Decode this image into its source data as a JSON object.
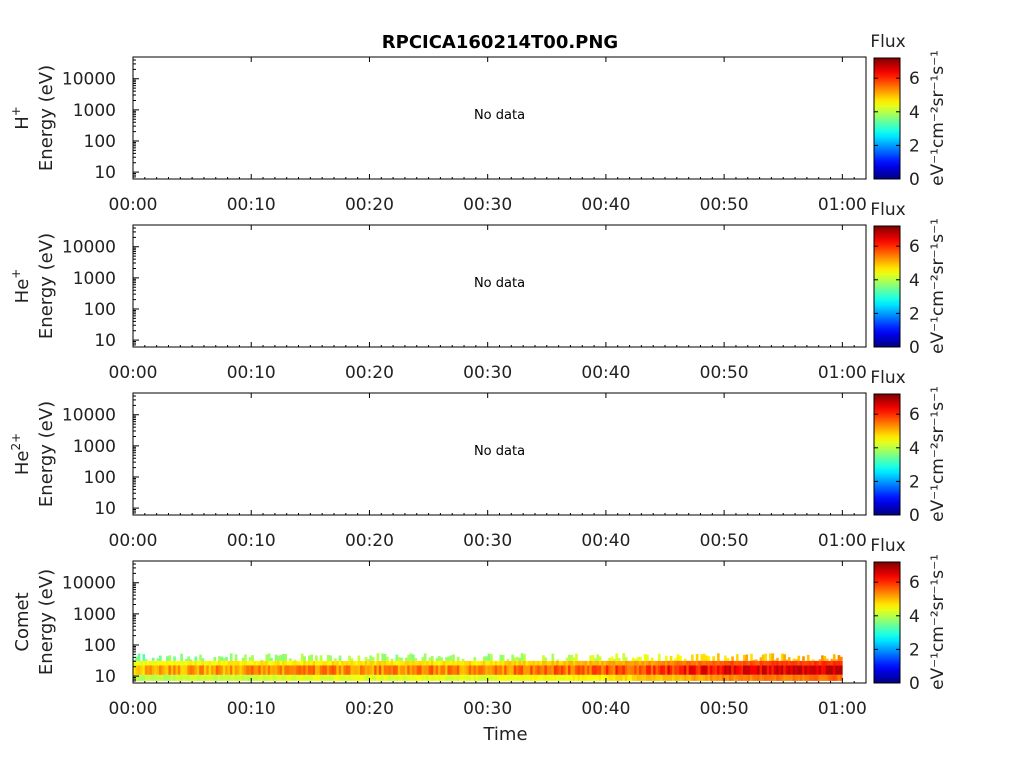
{
  "chart_data": {
    "type": "heatmap",
    "title": "RPCICA160214T00.PNG",
    "xlabel": "Time",
    "x_ticks": [
      "00:00",
      "00:10",
      "00:20",
      "00:30",
      "00:40",
      "00:50",
      "01:00"
    ],
    "x_range_minutes": [
      0,
      62
    ],
    "y_scale": "log",
    "y_range_eV": [
      6,
      50000
    ],
    "y_ticks": [
      10,
      100,
      1000,
      10000
    ],
    "y_tick_labels": [
      "10",
      "100",
      "1000",
      "10000"
    ],
    "colorbar": {
      "label": "Flux",
      "units": "eV⁻¹cm⁻²sr⁻¹s⁻¹",
      "range": [
        0,
        7.2
      ],
      "ticks": [
        0,
        2,
        4,
        6
      ],
      "tick_labels": [
        "0",
        "2",
        "4",
        "6"
      ],
      "colormap": "jet"
    },
    "panels": [
      {
        "species": "H",
        "charge": "+",
        "ylabel": "Energy (eV)",
        "status": "No data"
      },
      {
        "species": "He",
        "charge": "+",
        "ylabel": "Energy (eV)",
        "status": "No data"
      },
      {
        "species": "He",
        "charge": "2+",
        "ylabel": "Energy (eV)",
        "status": "No data"
      },
      {
        "species": "Comet",
        "charge": "",
        "ylabel": "Energy (eV)",
        "status": "",
        "band": {
          "energy_peak_eV": 16,
          "energy_core_eV": [
            11,
            22
          ],
          "energy_halo_eV": [
            7,
            55
          ],
          "time_minutes": [
            0,
            60
          ],
          "peak_flux": 6.8,
          "intensity_profile": [
            {
              "t": 0,
              "level": 4.6
            },
            {
              "t": 10,
              "level": 4.8
            },
            {
              "t": 20,
              "level": 4.9
            },
            {
              "t": 30,
              "level": 4.9
            },
            {
              "t": 40,
              "level": 5.2
            },
            {
              "t": 50,
              "level": 5.9
            },
            {
              "t": 60,
              "level": 6.2
            }
          ]
        }
      }
    ]
  }
}
